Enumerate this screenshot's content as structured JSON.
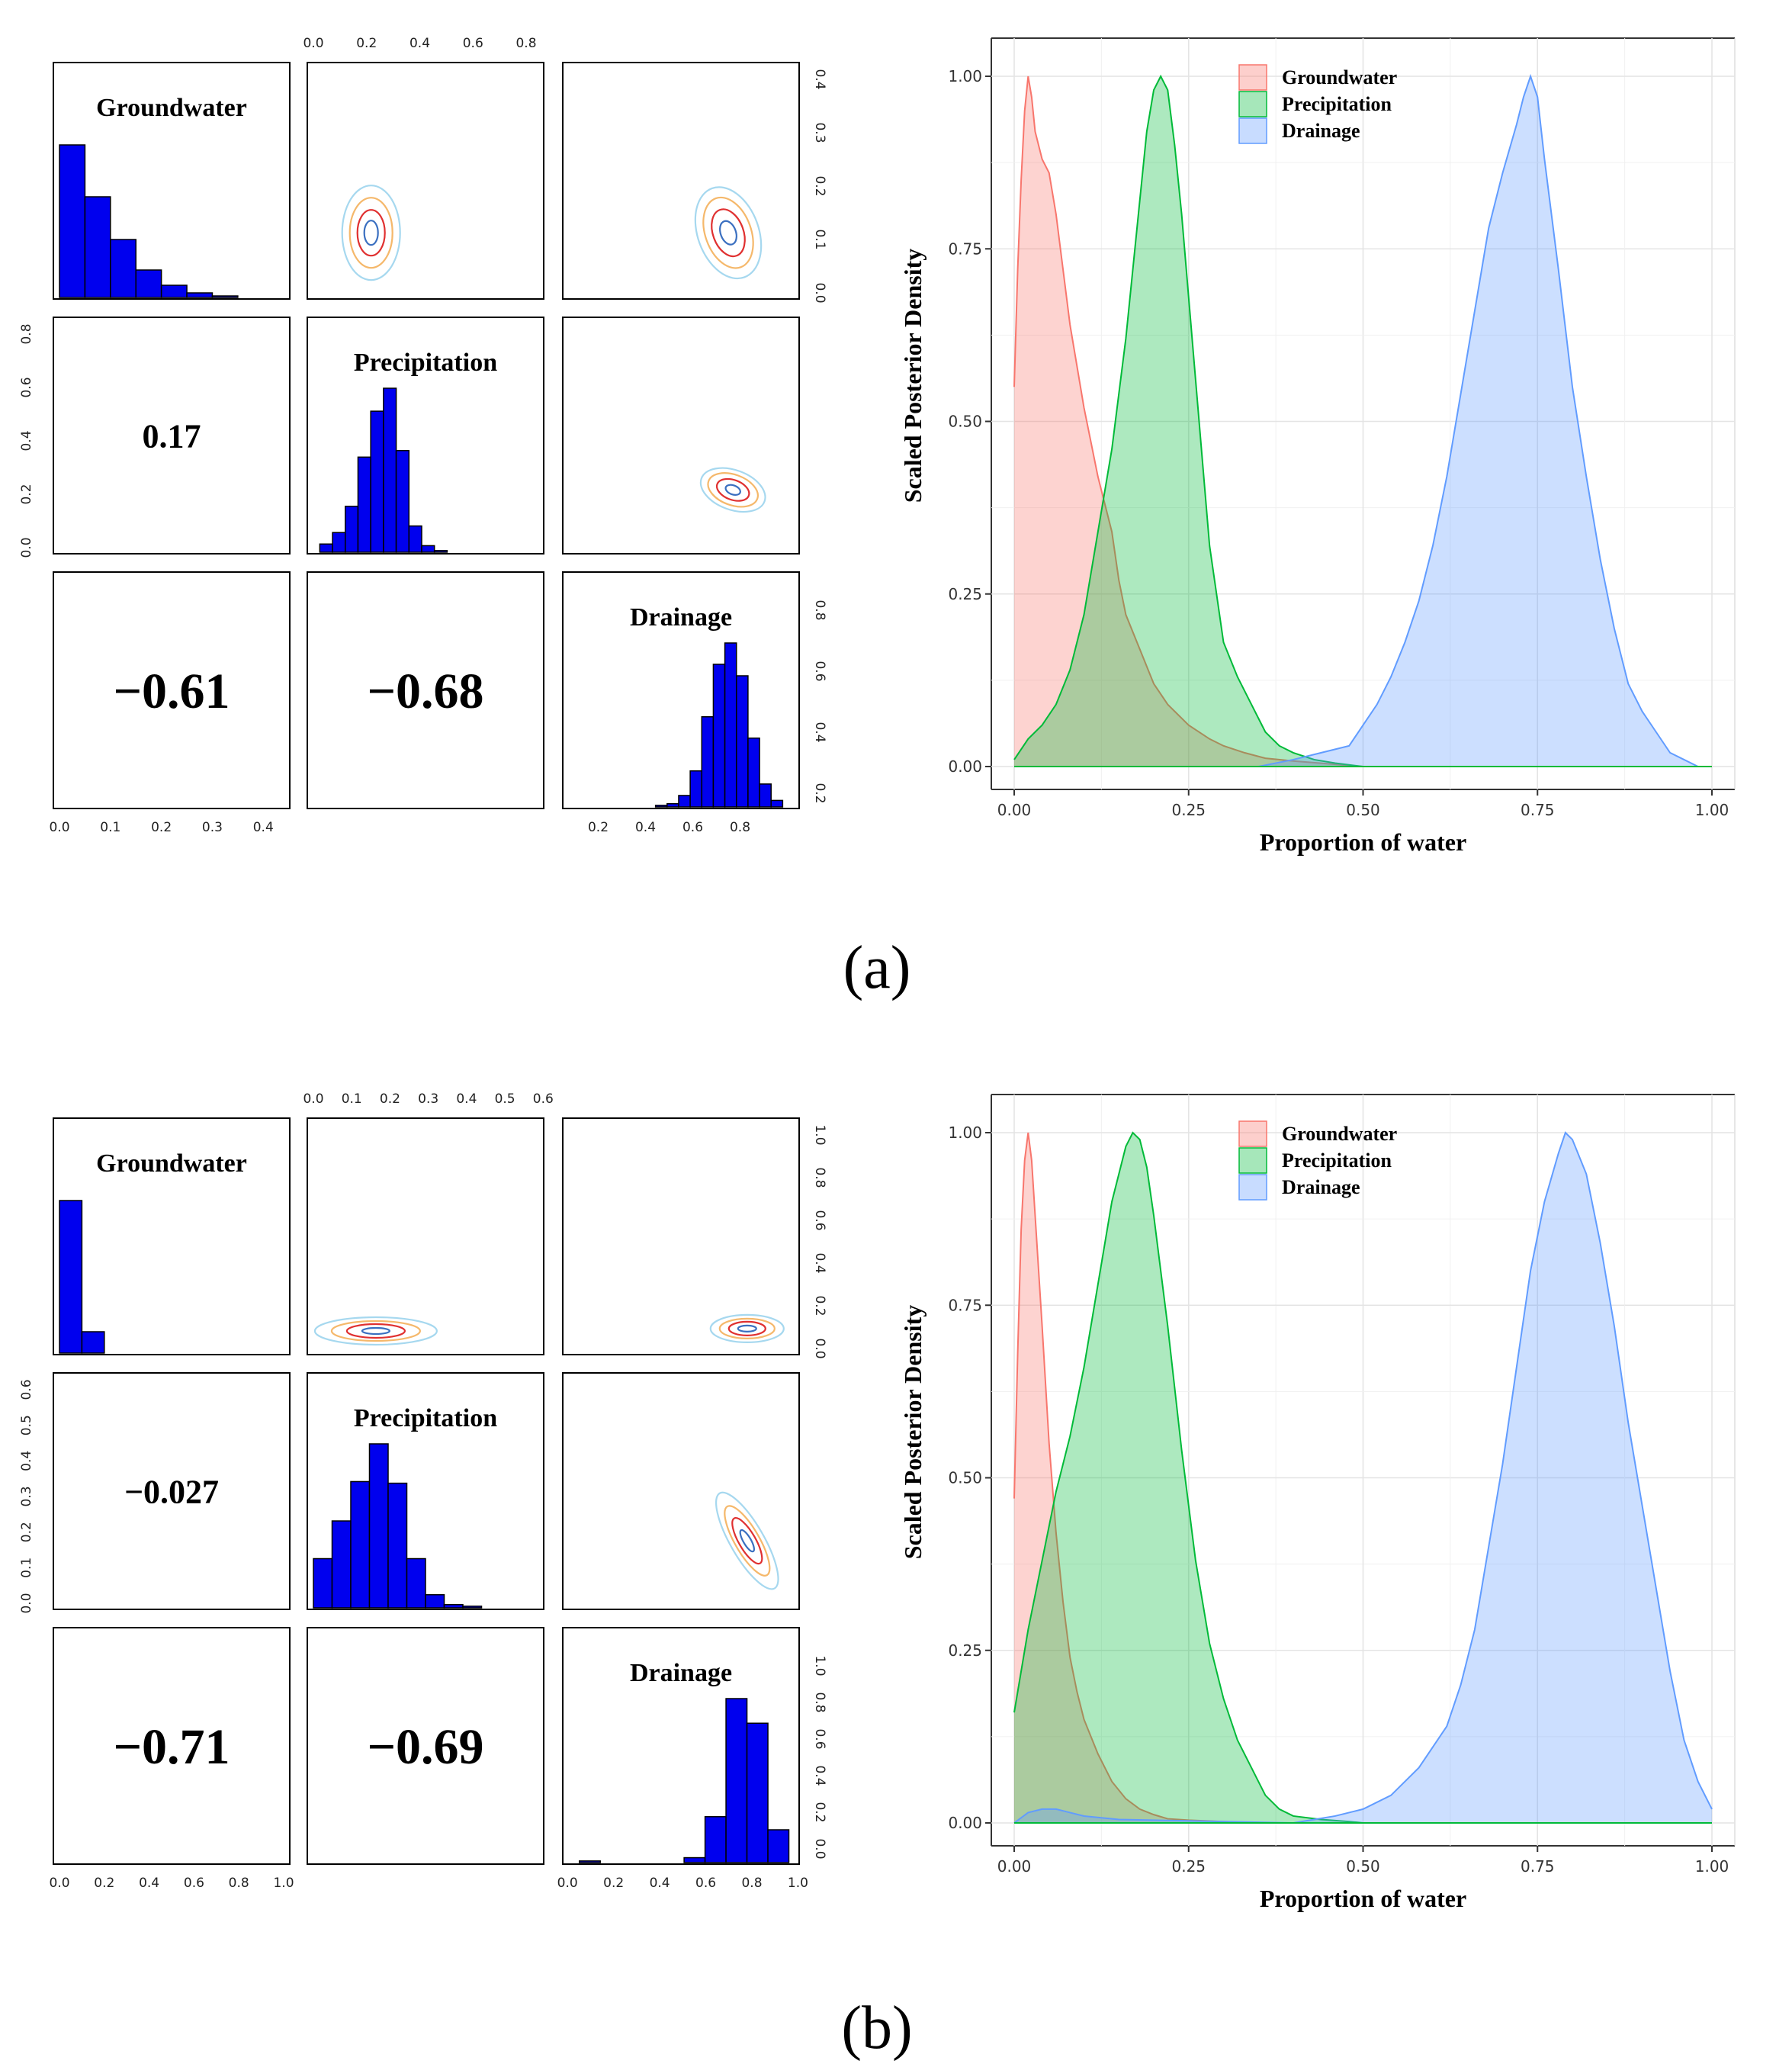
{
  "figure": {
    "panels": [
      {
        "caption": "(a)",
        "pairs": {
          "names": [
            "Groundwater",
            "Precipitation",
            "Drainage"
          ],
          "correlations": [
            {
              "row": 1,
              "col": 0,
              "label": "0.17"
            },
            {
              "row": 2,
              "col": 0,
              "label": "−0.61"
            },
            {
              "row": 2,
              "col": 1,
              "label": "−0.68"
            }
          ],
          "diag_ticks": [
            [
              "0.0",
              "0.1",
              "0.2",
              "0.3",
              "0.4"
            ],
            [
              "0.0",
              "0.2",
              "0.4",
              "0.6",
              "0.8"
            ],
            [
              "0.2",
              "0.4",
              "0.6",
              "0.8"
            ]
          ],
          "top_ticks": [
            "0.0",
            "0.2",
            "0.4",
            "0.6",
            "0.8"
          ],
          "right_ticks": [
            "0.0",
            "0.1",
            "0.2",
            "0.3",
            "0.4"
          ],
          "left_ticks": [
            "0.0",
            "0.2",
            "0.4",
            "0.6",
            "0.8"
          ],
          "drain_ticks": [
            "0.2",
            "0.4",
            "0.6",
            "0.8"
          ]
        },
        "density": {
          "ylabel": "Scaled Posterior Density",
          "xlabel": "Proportion of water",
          "xticks": [
            "0.00",
            "0.25",
            "0.50",
            "0.75",
            "1.00"
          ],
          "yticks": [
            "0.00",
            "0.25",
            "0.50",
            "0.75",
            "1.00"
          ],
          "legend": [
            "Groundwater",
            "Precipitation",
            "Drainage"
          ]
        }
      },
      {
        "caption": "(b)",
        "pairs": {
          "names": [
            "Groundwater",
            "Precipitation",
            "Drainage"
          ],
          "correlations": [
            {
              "row": 1,
              "col": 0,
              "label": "−0.027"
            },
            {
              "row": 2,
              "col": 0,
              "label": "−0.71"
            },
            {
              "row": 2,
              "col": 1,
              "label": "−0.69"
            }
          ],
          "diag_ticks": [
            [
              "0.0",
              "0.2",
              "0.4",
              "0.6",
              "0.8",
              "1.0"
            ],
            [],
            [
              "0.0",
              "0.2",
              "0.4",
              "0.6",
              "0.8",
              "1.0"
            ]
          ],
          "top_ticks": [
            "0.0",
            "0.1",
            "0.2",
            "0.3",
            "0.4",
            "0.5",
            "0.6"
          ],
          "right_ticks": [
            "0.0",
            "0.2",
            "0.4",
            "0.6",
            "0.8",
            "1.0"
          ],
          "left_ticks": [
            "0.0",
            "0.1",
            "0.2",
            "0.3",
            "0.4",
            "0.5",
            "0.6"
          ],
          "drain_ticks": [
            "0.0",
            "0.2",
            "0.4",
            "0.6",
            "0.8",
            "1.0"
          ]
        },
        "density": {
          "ylabel": "Scaled Posterior Density",
          "xlabel": "Proportion of water",
          "xticks": [
            "0.00",
            "0.25",
            "0.50",
            "0.75",
            "1.00"
          ],
          "yticks": [
            "0.00",
            "0.25",
            "0.50",
            "0.75",
            "1.00"
          ],
          "legend": [
            "Groundwater",
            "Precipitation",
            "Drainage"
          ]
        }
      }
    ]
  },
  "colors": {
    "groundwater": "#f8766d",
    "precipitation": "#00ba38",
    "drainage": "#619cff",
    "histogram": "#0000ee"
  },
  "chart_data": [
    {
      "type": "bar",
      "panel": "a",
      "subplot": "histogram",
      "name": "Groundwater",
      "x": [
        0.025,
        0.075,
        0.125,
        0.175,
        0.225,
        0.275,
        0.325
      ],
      "values": [
        1.0,
        0.66,
        0.38,
        0.18,
        0.08,
        0.03,
        0.01
      ]
    },
    {
      "type": "bar",
      "panel": "a",
      "subplot": "histogram",
      "name": "Precipitation",
      "x": [
        0.05,
        0.1,
        0.15,
        0.2,
        0.25,
        0.3,
        0.35,
        0.4,
        0.45,
        0.5
      ],
      "values": [
        0.05,
        0.12,
        0.28,
        0.58,
        0.86,
        1.0,
        0.62,
        0.16,
        0.04,
        0.01
      ]
    },
    {
      "type": "bar",
      "panel": "a",
      "subplot": "histogram",
      "name": "Drainage",
      "x": [
        0.45,
        0.5,
        0.55,
        0.6,
        0.65,
        0.7,
        0.75,
        0.8,
        0.85,
        0.9,
        0.95
      ],
      "values": [
        0.01,
        0.02,
        0.07,
        0.22,
        0.55,
        0.87,
        1.0,
        0.8,
        0.42,
        0.14,
        0.04
      ]
    },
    {
      "type": "area",
      "panel": "a",
      "subplot": "density",
      "xlabel": "Proportion of water",
      "ylabel": "Scaled Posterior Density",
      "xlim": [
        0,
        1
      ],
      "ylim": [
        0,
        1
      ],
      "series": [
        {
          "name": "Groundwater",
          "x": [
            0,
            0.005,
            0.01,
            0.015,
            0.02,
            0.025,
            0.03,
            0.04,
            0.05,
            0.06,
            0.07,
            0.08,
            0.09,
            0.1,
            0.11,
            0.12,
            0.13,
            0.14,
            0.15,
            0.16,
            0.18,
            0.2,
            0.22,
            0.25,
            0.28,
            0.3,
            0.33,
            0.36,
            0.4,
            0.45,
            0.5
          ],
          "values": [
            0.55,
            0.72,
            0.85,
            0.95,
            1.0,
            0.97,
            0.92,
            0.88,
            0.86,
            0.8,
            0.72,
            0.64,
            0.58,
            0.52,
            0.47,
            0.42,
            0.38,
            0.34,
            0.27,
            0.22,
            0.17,
            0.12,
            0.09,
            0.06,
            0.04,
            0.03,
            0.02,
            0.012,
            0.008,
            0.004,
            0.0
          ]
        },
        {
          "name": "Precipitation",
          "x": [
            0,
            0.02,
            0.04,
            0.06,
            0.08,
            0.1,
            0.12,
            0.14,
            0.16,
            0.18,
            0.19,
            0.2,
            0.21,
            0.22,
            0.23,
            0.24,
            0.26,
            0.28,
            0.3,
            0.32,
            0.34,
            0.36,
            0.38,
            0.4,
            0.43,
            0.46,
            0.5
          ],
          "values": [
            0.01,
            0.04,
            0.06,
            0.09,
            0.14,
            0.22,
            0.34,
            0.46,
            0.62,
            0.82,
            0.92,
            0.98,
            1.0,
            0.98,
            0.9,
            0.8,
            0.56,
            0.32,
            0.18,
            0.13,
            0.09,
            0.05,
            0.03,
            0.02,
            0.01,
            0.005,
            0.0
          ]
        },
        {
          "name": "Drainage",
          "x": [
            0,
            0.35,
            0.4,
            0.44,
            0.46,
            0.48,
            0.5,
            0.52,
            0.54,
            0.56,
            0.58,
            0.6,
            0.62,
            0.64,
            0.66,
            0.68,
            0.7,
            0.72,
            0.73,
            0.74,
            0.75,
            0.76,
            0.78,
            0.8,
            0.82,
            0.84,
            0.86,
            0.88,
            0.9,
            0.92,
            0.94,
            0.96,
            0.98
          ],
          "values": [
            0.0,
            0.0,
            0.01,
            0.02,
            0.025,
            0.03,
            0.06,
            0.09,
            0.13,
            0.18,
            0.24,
            0.32,
            0.42,
            0.54,
            0.66,
            0.78,
            0.86,
            0.93,
            0.97,
            1.0,
            0.97,
            0.88,
            0.72,
            0.55,
            0.42,
            0.3,
            0.2,
            0.12,
            0.08,
            0.05,
            0.02,
            0.01,
            0.0
          ]
        }
      ]
    },
    {
      "type": "bar",
      "panel": "b",
      "subplot": "histogram",
      "name": "Groundwater",
      "x": [
        0.05,
        0.15
      ],
      "values": [
        1.0,
        0.14
      ]
    },
    {
      "type": "bar",
      "panel": "b",
      "subplot": "histogram",
      "name": "Precipitation",
      "x": [
        0.025,
        0.075,
        0.125,
        0.175,
        0.225,
        0.275,
        0.325,
        0.375,
        0.425
      ],
      "values": [
        0.3,
        0.53,
        0.77,
        1.0,
        0.76,
        0.3,
        0.08,
        0.02,
        0.01
      ]
    },
    {
      "type": "bar",
      "panel": "b",
      "subplot": "histogram",
      "name": "Drainage",
      "x": [
        0.05,
        0.55,
        0.65,
        0.75,
        0.85,
        0.95
      ],
      "values": [
        0.01,
        0.03,
        0.28,
        1.0,
        0.85,
        0.2
      ]
    },
    {
      "type": "area",
      "panel": "b",
      "subplot": "density",
      "xlabel": "Proportion of water",
      "ylabel": "Scaled Posterior Density",
      "xlim": [
        0,
        1
      ],
      "ylim": [
        0,
        1
      ],
      "series": [
        {
          "name": "Groundwater",
          "x": [
            0,
            0.005,
            0.01,
            0.015,
            0.02,
            0.025,
            0.03,
            0.04,
            0.05,
            0.06,
            0.07,
            0.08,
            0.09,
            0.1,
            0.12,
            0.14,
            0.16,
            0.18,
            0.2,
            0.22,
            0.25,
            0.3,
            0.35,
            0.4,
            0.45
          ],
          "values": [
            0.47,
            0.68,
            0.86,
            0.96,
            1.0,
            0.96,
            0.88,
            0.72,
            0.55,
            0.42,
            0.32,
            0.24,
            0.19,
            0.15,
            0.1,
            0.06,
            0.035,
            0.02,
            0.012,
            0.006,
            0.004,
            0.002,
            0.0,
            0.0,
            0.0
          ]
        },
        {
          "name": "Precipitation",
          "x": [
            0,
            0.02,
            0.04,
            0.06,
            0.08,
            0.1,
            0.12,
            0.14,
            0.16,
            0.17,
            0.18,
            0.19,
            0.2,
            0.22,
            0.24,
            0.26,
            0.28,
            0.3,
            0.32,
            0.34,
            0.36,
            0.38,
            0.4,
            0.44,
            0.48,
            0.5
          ],
          "values": [
            0.16,
            0.28,
            0.38,
            0.48,
            0.56,
            0.66,
            0.78,
            0.9,
            0.98,
            1.0,
            0.99,
            0.95,
            0.88,
            0.72,
            0.54,
            0.38,
            0.26,
            0.18,
            0.12,
            0.08,
            0.04,
            0.02,
            0.01,
            0.005,
            0.002,
            0.0
          ]
        },
        {
          "name": "Drainage",
          "x": [
            0,
            0.02,
            0.04,
            0.06,
            0.08,
            0.1,
            0.15,
            0.4,
            0.46,
            0.5,
            0.54,
            0.58,
            0.62,
            0.64,
            0.66,
            0.68,
            0.7,
            0.72,
            0.74,
            0.76,
            0.78,
            0.79,
            0.8,
            0.82,
            0.84,
            0.86,
            0.88,
            0.9,
            0.92,
            0.94,
            0.96,
            0.98,
            1.0
          ],
          "values": [
            0.0,
            0.015,
            0.02,
            0.02,
            0.015,
            0.01,
            0.005,
            0.0,
            0.01,
            0.02,
            0.04,
            0.08,
            0.14,
            0.2,
            0.28,
            0.4,
            0.52,
            0.66,
            0.8,
            0.9,
            0.97,
            1.0,
            0.99,
            0.94,
            0.84,
            0.72,
            0.58,
            0.46,
            0.34,
            0.22,
            0.12,
            0.06,
            0.02
          ]
        }
      ]
    }
  ]
}
